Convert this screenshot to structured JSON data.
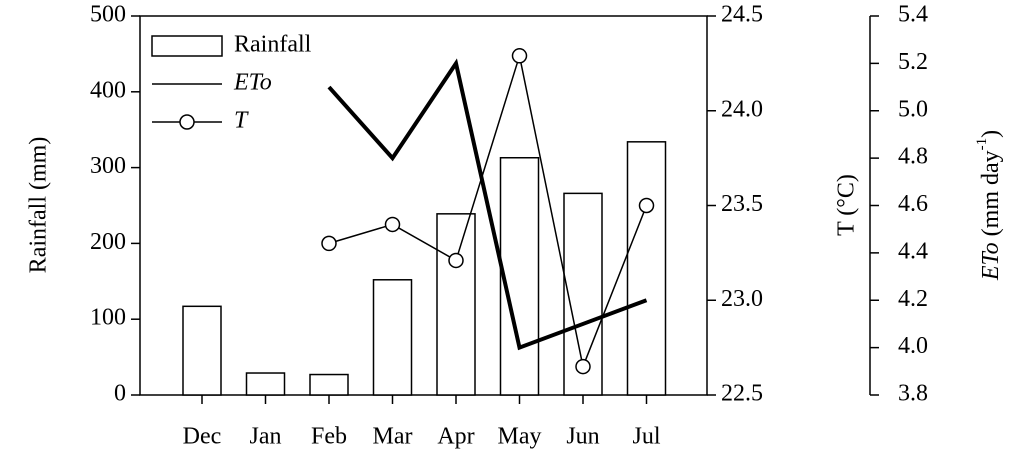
{
  "chart_data": {
    "type": "bar_line",
    "categories": [
      "Dec",
      "Jan",
      "Feb",
      "Mar",
      "Apr",
      "May",
      "Jun",
      "Jul"
    ],
    "series": [
      {
        "name": "Rainfall",
        "type": "bar",
        "color": "#ffffff",
        "values": [
          117,
          29,
          27,
          152,
          239,
          313,
          266,
          334
        ]
      },
      {
        "name": "ETo",
        "type": "line",
        "color": "#000000",
        "axis": "y3",
        "values": [
          null,
          null,
          5.1,
          4.8,
          5.2,
          4.0,
          4.1,
          4.2
        ]
      },
      {
        "name": "T",
        "type": "line_marker",
        "color": "#000000",
        "axis": "y2",
        "values": [
          null,
          null,
          23.3,
          23.4,
          23.21,
          24.29,
          22.65,
          23.5
        ]
      }
    ],
    "ylabel": "Rainfall (mm)",
    "y2label": "T (°C)",
    "y3label_parts": [
      "ETo",
      " (mm day",
      "-1",
      ")"
    ],
    "ylim": [
      0,
      500
    ],
    "yticks": [
      0,
      100,
      200,
      300,
      400,
      500
    ],
    "y2lim": [
      22.5,
      24.5
    ],
    "y2ticks": [
      22.5,
      {
        "value": 23,
        "label": "23.0"
      },
      23.5,
      {
        "value": 24,
        "label": "24.0"
      },
      24.5
    ],
    "y3lim": [
      3.8,
      5.4
    ],
    "y3ticks": [
      3.8,
      {
        "value": 4,
        "label": "4.0"
      },
      4.2,
      4.4,
      4.6,
      4.8,
      {
        "value": 5,
        "label": "5.0"
      },
      5.2,
      5.4
    ],
    "legend": "top-left",
    "grid": false
  }
}
